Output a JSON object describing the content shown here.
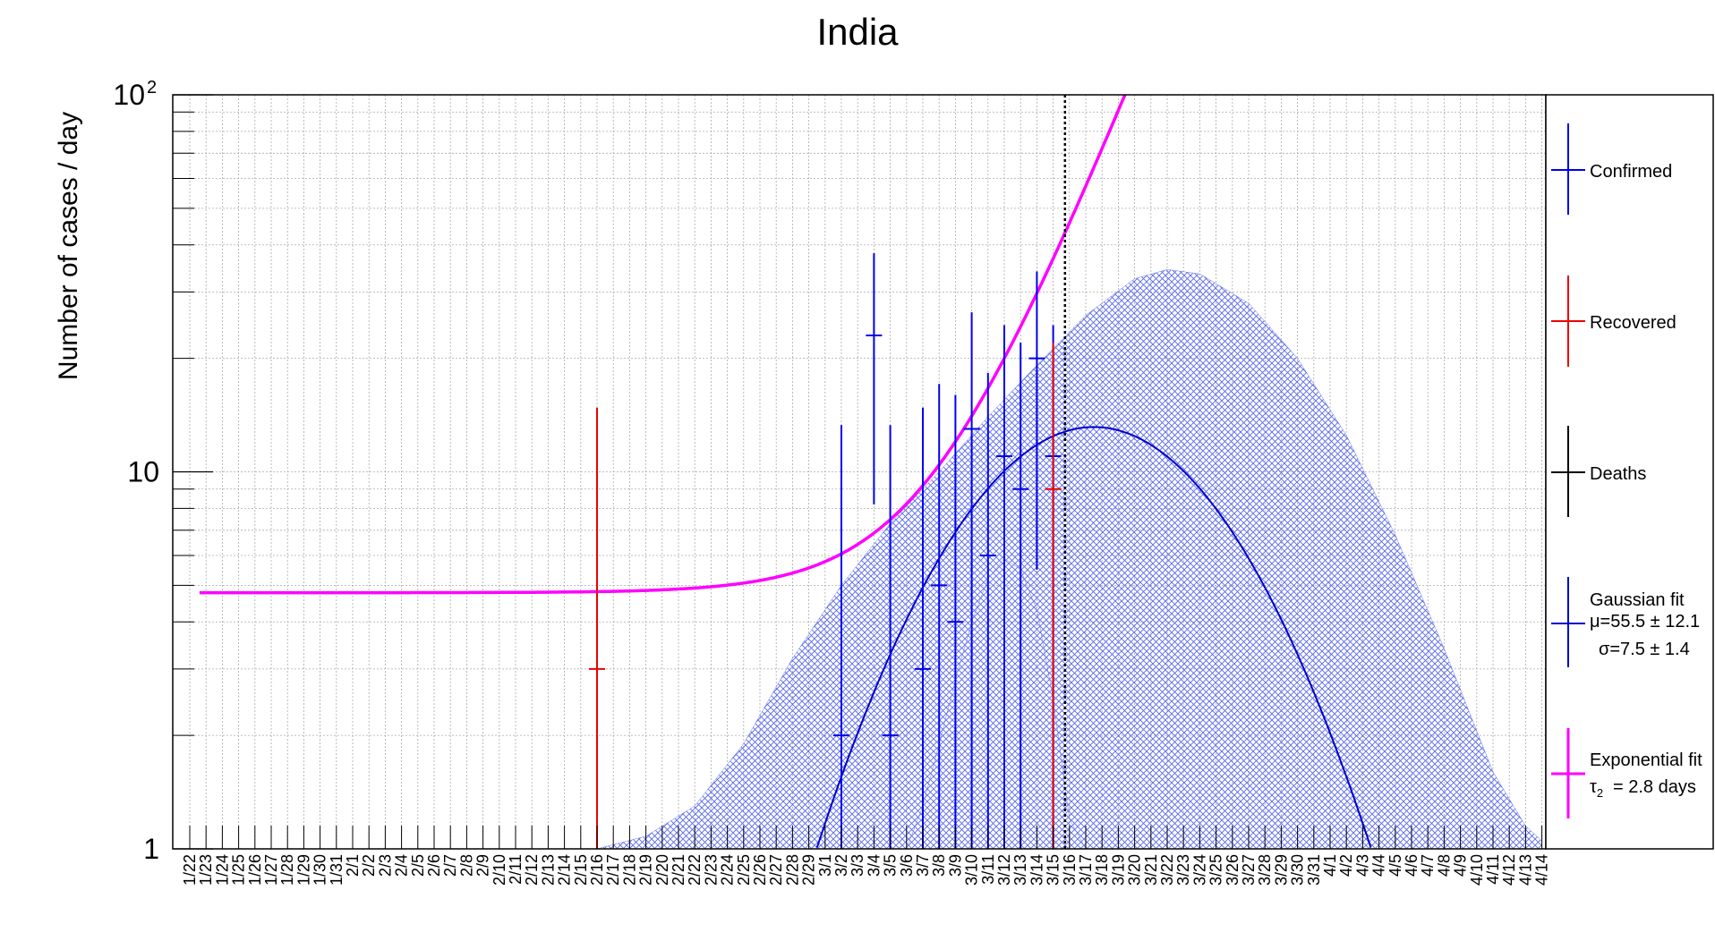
{
  "chart_data": {
    "type": "scatter",
    "title": "India",
    "ylabel": "Number of cases / day",
    "xlabel": "",
    "yscale": "log",
    "ylim": [
      1,
      100
    ],
    "y_ticks": [
      {
        "value": 1,
        "label": "1"
      },
      {
        "value": 10,
        "label": "10"
      },
      {
        "value": 100,
        "label": "10",
        "sup": "2"
      }
    ],
    "grid": true,
    "legend_position": "right",
    "x_labels": [
      "1/22",
      "1/23",
      "1/24",
      "1/25",
      "1/26",
      "1/27",
      "1/28",
      "1/29",
      "1/30",
      "1/31",
      "2/1",
      "2/2",
      "2/3",
      "2/4",
      "2/5",
      "2/6",
      "2/7",
      "2/8",
      "2/9",
      "2/10",
      "2/11",
      "2/12",
      "2/13",
      "2/14",
      "2/15",
      "2/16",
      "2/17",
      "2/18",
      "2/19",
      "2/20",
      "2/21",
      "2/22",
      "2/23",
      "2/24",
      "2/25",
      "2/26",
      "2/27",
      "2/28",
      "2/29",
      "3/1",
      "3/2",
      "3/3",
      "3/4",
      "3/5",
      "3/6",
      "3/7",
      "3/8",
      "3/9",
      "3/10",
      "3/11",
      "3/12",
      "3/13",
      "3/14",
      "3/15",
      "3/16",
      "3/17",
      "3/18",
      "3/19",
      "3/20",
      "3/21",
      "3/22",
      "3/23",
      "3/24",
      "3/25",
      "3/26",
      "3/27",
      "3/28",
      "3/29",
      "3/30",
      "3/31",
      "4/1",
      "4/2",
      "4/3",
      "4/4",
      "4/5",
      "4/6",
      "4/7",
      "4/8",
      "4/9",
      "4/10",
      "4/11",
      "4/12",
      "4/13",
      "4/14"
    ],
    "cursor_date": "3/16",
    "series": [
      {
        "name": "Confirmed",
        "color": "#0000ee",
        "points": [
          {
            "x": "3/2",
            "y": 2,
            "lo": 1,
            "hi": 13.3
          },
          {
            "x": "3/4",
            "y": 23,
            "lo": 8.2,
            "hi": 38
          },
          {
            "x": "3/5",
            "y": 2,
            "lo": 1,
            "hi": 13.3
          },
          {
            "x": "3/7",
            "y": 3,
            "lo": 1,
            "hi": 14.8
          },
          {
            "x": "3/8",
            "y": 5,
            "lo": 1,
            "hi": 17.1
          },
          {
            "x": "3/9",
            "y": 4,
            "lo": 1,
            "hi": 16
          },
          {
            "x": "3/10",
            "y": 13,
            "lo": 1,
            "hi": 26.5
          },
          {
            "x": "3/11",
            "y": 6,
            "lo": 1,
            "hi": 18.3
          },
          {
            "x": "3/12",
            "y": 11,
            "lo": 1,
            "hi": 24.5
          },
          {
            "x": "3/13",
            "y": 9,
            "lo": 1,
            "hi": 22
          },
          {
            "x": "3/14",
            "y": 20,
            "lo": 5.5,
            "hi": 34
          },
          {
            "x": "3/15",
            "y": 11,
            "lo": 1,
            "hi": 24.5
          }
        ]
      },
      {
        "name": "Recovered",
        "color": "#ee0000",
        "points": [
          {
            "x": "2/16",
            "y": 3,
            "lo": 1,
            "hi": 14.8
          },
          {
            "x": "3/15",
            "y": 9,
            "lo": 1,
            "hi": 22
          }
        ]
      },
      {
        "name": "Deaths",
        "color": "#000000",
        "points": []
      }
    ],
    "fits": {
      "gaussian": {
        "name": "Gaussian fit",
        "mu": "μ=55.5 ± 12.1",
        "sigma": "σ=7.5 ± 1.4",
        "color": "#0000cc",
        "band_color": "#5566ee"
      },
      "exponential": {
        "name": "Exponential fit",
        "tau": "2.8",
        "tau_label": "= 2.8 days",
        "color": "#ff00ff"
      }
    }
  }
}
